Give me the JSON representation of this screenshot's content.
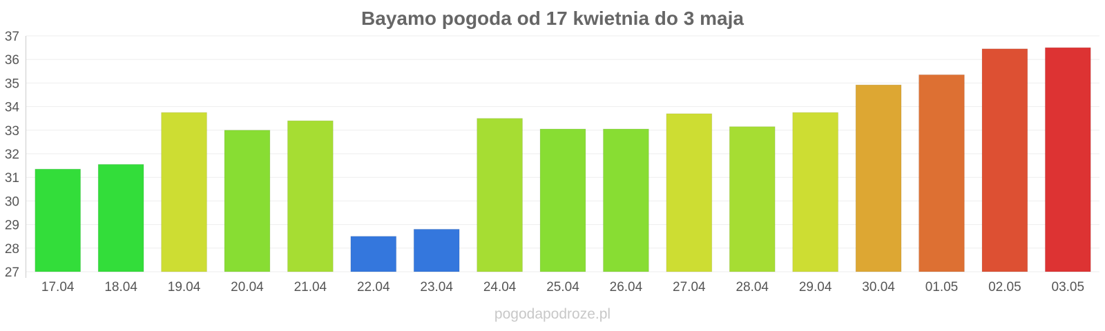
{
  "chart_data": {
    "type": "bar",
    "title": "Bayamo pogoda od 17 kwietnia do 3 maja",
    "xlabel": "",
    "ylabel": "",
    "categories": [
      "17.04",
      "18.04",
      "19.04",
      "20.04",
      "21.04",
      "22.04",
      "23.04",
      "24.04",
      "25.04",
      "26.04",
      "27.04",
      "28.04",
      "29.04",
      "30.04",
      "01.05",
      "02.05",
      "03.05"
    ],
    "values": [
      31.35,
      31.55,
      33.75,
      33.0,
      33.4,
      28.5,
      28.8,
      33.5,
      33.05,
      33.05,
      33.7,
      33.15,
      33.75,
      34.92,
      35.35,
      36.45,
      36.5
    ],
    "colors": [
      "#33dd3a",
      "#33dd3a",
      "#cddd33",
      "#88dd33",
      "#a6dd33",
      "#3477dd",
      "#3477dd",
      "#a6dd33",
      "#88dd33",
      "#88dd33",
      "#cddd33",
      "#a6dd33",
      "#cddd33",
      "#dda733",
      "#dd7033",
      "#dd5033",
      "#dd3333"
    ],
    "ylim": [
      27,
      37
    ],
    "yticks": [
      "27",
      "28",
      "29",
      "30",
      "31",
      "32",
      "33",
      "34",
      "35",
      "36",
      "37"
    ],
    "grid": true,
    "legend": "none"
  },
  "footer": {
    "watermark": "pogodapodroze.pl"
  }
}
